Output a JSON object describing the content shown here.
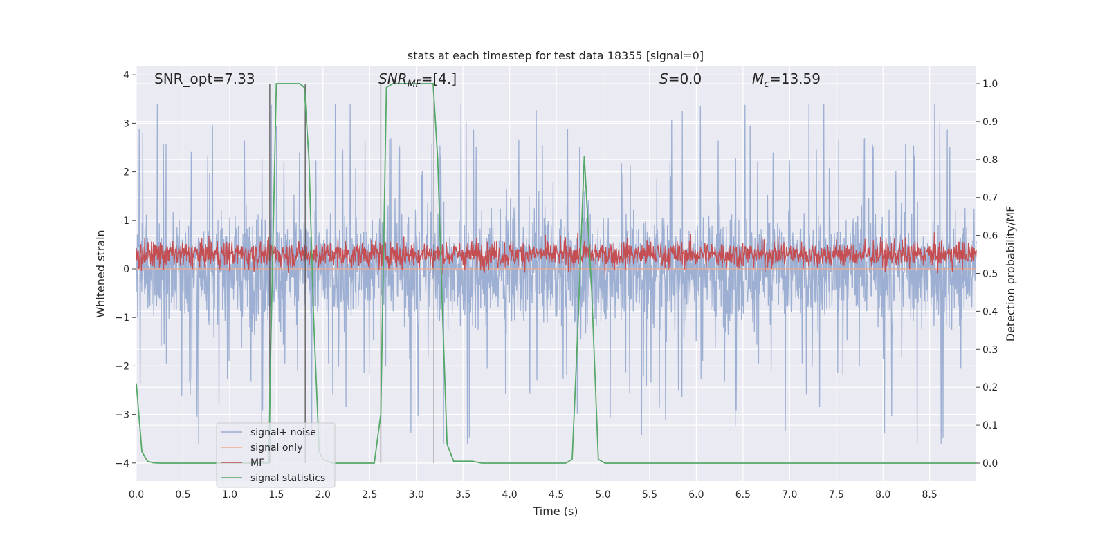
{
  "chart_data": {
    "type": "line",
    "title": "stats at each timestep for test data 18355 [signal=0]",
    "xlabel": "Time (s)",
    "ylabel": "Whitened strain",
    "ylabel_right": "Detection probability/MF",
    "xlim": [
      0.0,
      9.0
    ],
    "ylim": [
      -4.3,
      4.2
    ],
    "ylim_right": [
      -0.05,
      1.05
    ],
    "xticks": [
      "0.0",
      "0.5",
      "1.0",
      "1.5",
      "2.0",
      "2.5",
      "3.0",
      "3.5",
      "4.0",
      "4.5",
      "5.0",
      "5.5",
      "6.0",
      "6.5",
      "7.0",
      "7.5",
      "8.0",
      "8.5"
    ],
    "yticks_left": [
      "4",
      "3",
      "2",
      "1",
      "0",
      "−1",
      "−2",
      "−3",
      "−4"
    ],
    "yticks_right": [
      "1.0",
      "0.9",
      "0.8",
      "0.7",
      "0.6",
      "0.5",
      "0.4",
      "0.3",
      "0.2",
      "0.1",
      "0.0"
    ],
    "grid": true,
    "legend_position": "lower-left",
    "annotations": {
      "snr_opt": "SNR_opt=7.33",
      "snr_mf_main": "SNR",
      "snr_mf_sub": "MF",
      "snr_mf_rest": "=[4.]",
      "s_main": "S",
      "s_rest": "=0.0",
      "mc_main": "M",
      "mc_sub": "c",
      "mc_rest": "=13.59"
    },
    "vertical_markers_s": [
      1.43,
      1.81,
      2.62,
      3.19
    ],
    "series": [
      {
        "name": "signal+ noise",
        "axis": "left",
        "color": "#99acd0",
        "kind": "noise",
        "approx_mean": 0.0,
        "approx_peak_range": [
          -3.6,
          3.4
        ]
      },
      {
        "name": "signal only",
        "axis": "left",
        "color": "#eeaa8c",
        "kind": "flat",
        "value": 0.0
      },
      {
        "name": "MF",
        "axis": "left",
        "color": "#c44e52",
        "kind": "noise",
        "approx_mean": 0.3,
        "approx_range": [
          -0.1,
          1.0
        ]
      },
      {
        "name": "signal statistics",
        "axis": "right",
        "color": "#55a868",
        "kind": "line",
        "x": [
          0.0,
          0.06,
          0.12,
          0.18,
          0.25,
          1.0,
          1.42,
          1.44,
          1.5,
          1.6,
          1.75,
          1.8,
          1.85,
          1.9,
          1.96,
          2.0,
          2.1,
          2.2,
          2.55,
          2.62,
          2.68,
          2.75,
          3.0,
          3.18,
          3.23,
          3.28,
          3.33,
          3.4,
          3.5,
          3.6,
          3.7,
          4.0,
          4.6,
          4.67,
          4.73,
          4.8,
          4.88,
          4.95,
          5.02,
          9.0
        ],
        "y": [
          0.21,
          0.03,
          0.005,
          0.001,
          0.0,
          0.0,
          0.0,
          0.3,
          1.0,
          1.0,
          1.0,
          0.99,
          0.8,
          0.38,
          0.03,
          0.01,
          0.0,
          0.0,
          0.0,
          0.13,
          0.99,
          1.0,
          1.0,
          1.0,
          0.8,
          0.4,
          0.05,
          0.005,
          0.005,
          0.005,
          0.0,
          0.0,
          0.0,
          0.01,
          0.35,
          0.81,
          0.45,
          0.01,
          0.0,
          0.0
        ]
      }
    ]
  }
}
